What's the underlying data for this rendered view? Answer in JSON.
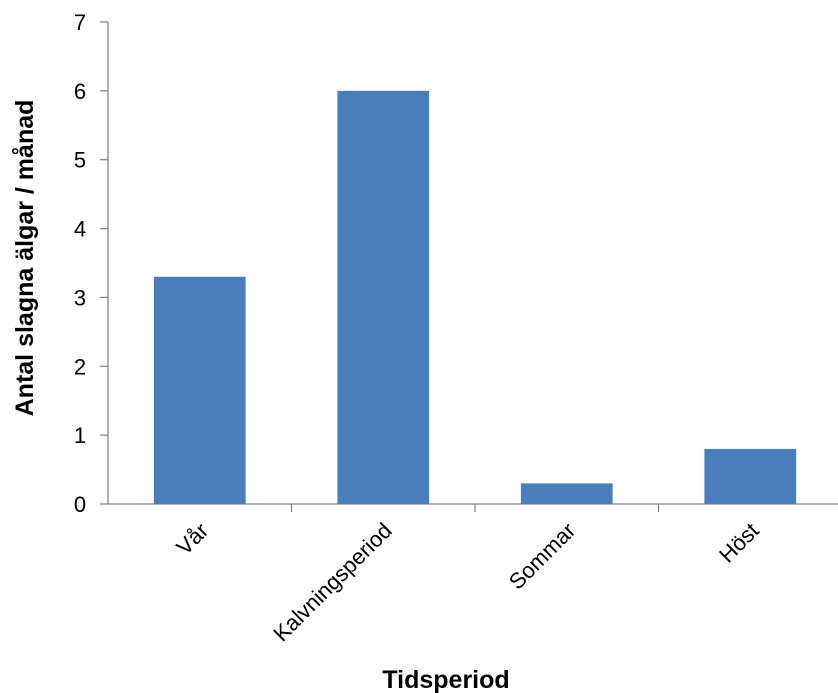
{
  "chart_data": {
    "type": "bar",
    "title": "",
    "xlabel": "Tidsperiod",
    "ylabel": "Antal slagna älgar / månad",
    "categories": [
      "Vår",
      "Kalvningsperiod",
      "Sommar",
      "Höst"
    ],
    "values": [
      3.3,
      6.0,
      0.3,
      0.8
    ],
    "ylim": [
      0,
      7
    ],
    "yticks": [
      0,
      1,
      2,
      3,
      4,
      5,
      6,
      7
    ],
    "grid": false,
    "legend": "none",
    "bar_color": "#4A7EBB"
  }
}
